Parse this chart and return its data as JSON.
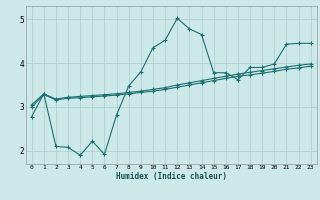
{
  "title": "",
  "xlabel": "Humidex (Indice chaleur)",
  "background_color": "#cce8e8",
  "grid_color": "#aacccc",
  "line_color": "#1a7070",
  "xlim": [
    -0.5,
    23.5
  ],
  "ylim": [
    1.7,
    5.3
  ],
  "xticks": [
    0,
    1,
    2,
    3,
    4,
    5,
    6,
    7,
    8,
    9,
    10,
    11,
    12,
    13,
    14,
    15,
    16,
    17,
    18,
    19,
    20,
    21,
    22,
    23
  ],
  "yticks": [
    2,
    3,
    4,
    5
  ],
  "line1_x": [
    0,
    1,
    2,
    3,
    4,
    5,
    6,
    7,
    8,
    9,
    10,
    11,
    12,
    13,
    14,
    15,
    16,
    17,
    18,
    19,
    20,
    21,
    22,
    23
  ],
  "line1_y": [
    3.05,
    3.3,
    3.18,
    3.22,
    3.24,
    3.26,
    3.28,
    3.3,
    3.33,
    3.36,
    3.4,
    3.44,
    3.5,
    3.55,
    3.6,
    3.65,
    3.7,
    3.75,
    3.79,
    3.83,
    3.87,
    3.91,
    3.95,
    3.98
  ],
  "line2_x": [
    0,
    1,
    2,
    3,
    4,
    5,
    6,
    7,
    8,
    9,
    10,
    11,
    12,
    13,
    14,
    15,
    16,
    17,
    18,
    19,
    20,
    21,
    22,
    23
  ],
  "line2_y": [
    3.0,
    3.28,
    3.16,
    3.2,
    3.21,
    3.23,
    3.25,
    3.27,
    3.3,
    3.33,
    3.36,
    3.4,
    3.45,
    3.5,
    3.55,
    3.6,
    3.65,
    3.7,
    3.73,
    3.77,
    3.81,
    3.86,
    3.89,
    3.93
  ],
  "line3_x": [
    0,
    1,
    2,
    3,
    4,
    5,
    6,
    7,
    8,
    9,
    10,
    11,
    12,
    13,
    14,
    15,
    16,
    17,
    18,
    19,
    20,
    21,
    22,
    23
  ],
  "line3_y": [
    2.78,
    3.3,
    2.1,
    2.08,
    1.9,
    2.22,
    1.92,
    2.82,
    3.48,
    3.8,
    4.35,
    4.52,
    5.02,
    4.78,
    4.65,
    3.78,
    3.78,
    3.62,
    3.9,
    3.9,
    3.98,
    4.43,
    4.45,
    4.45
  ]
}
